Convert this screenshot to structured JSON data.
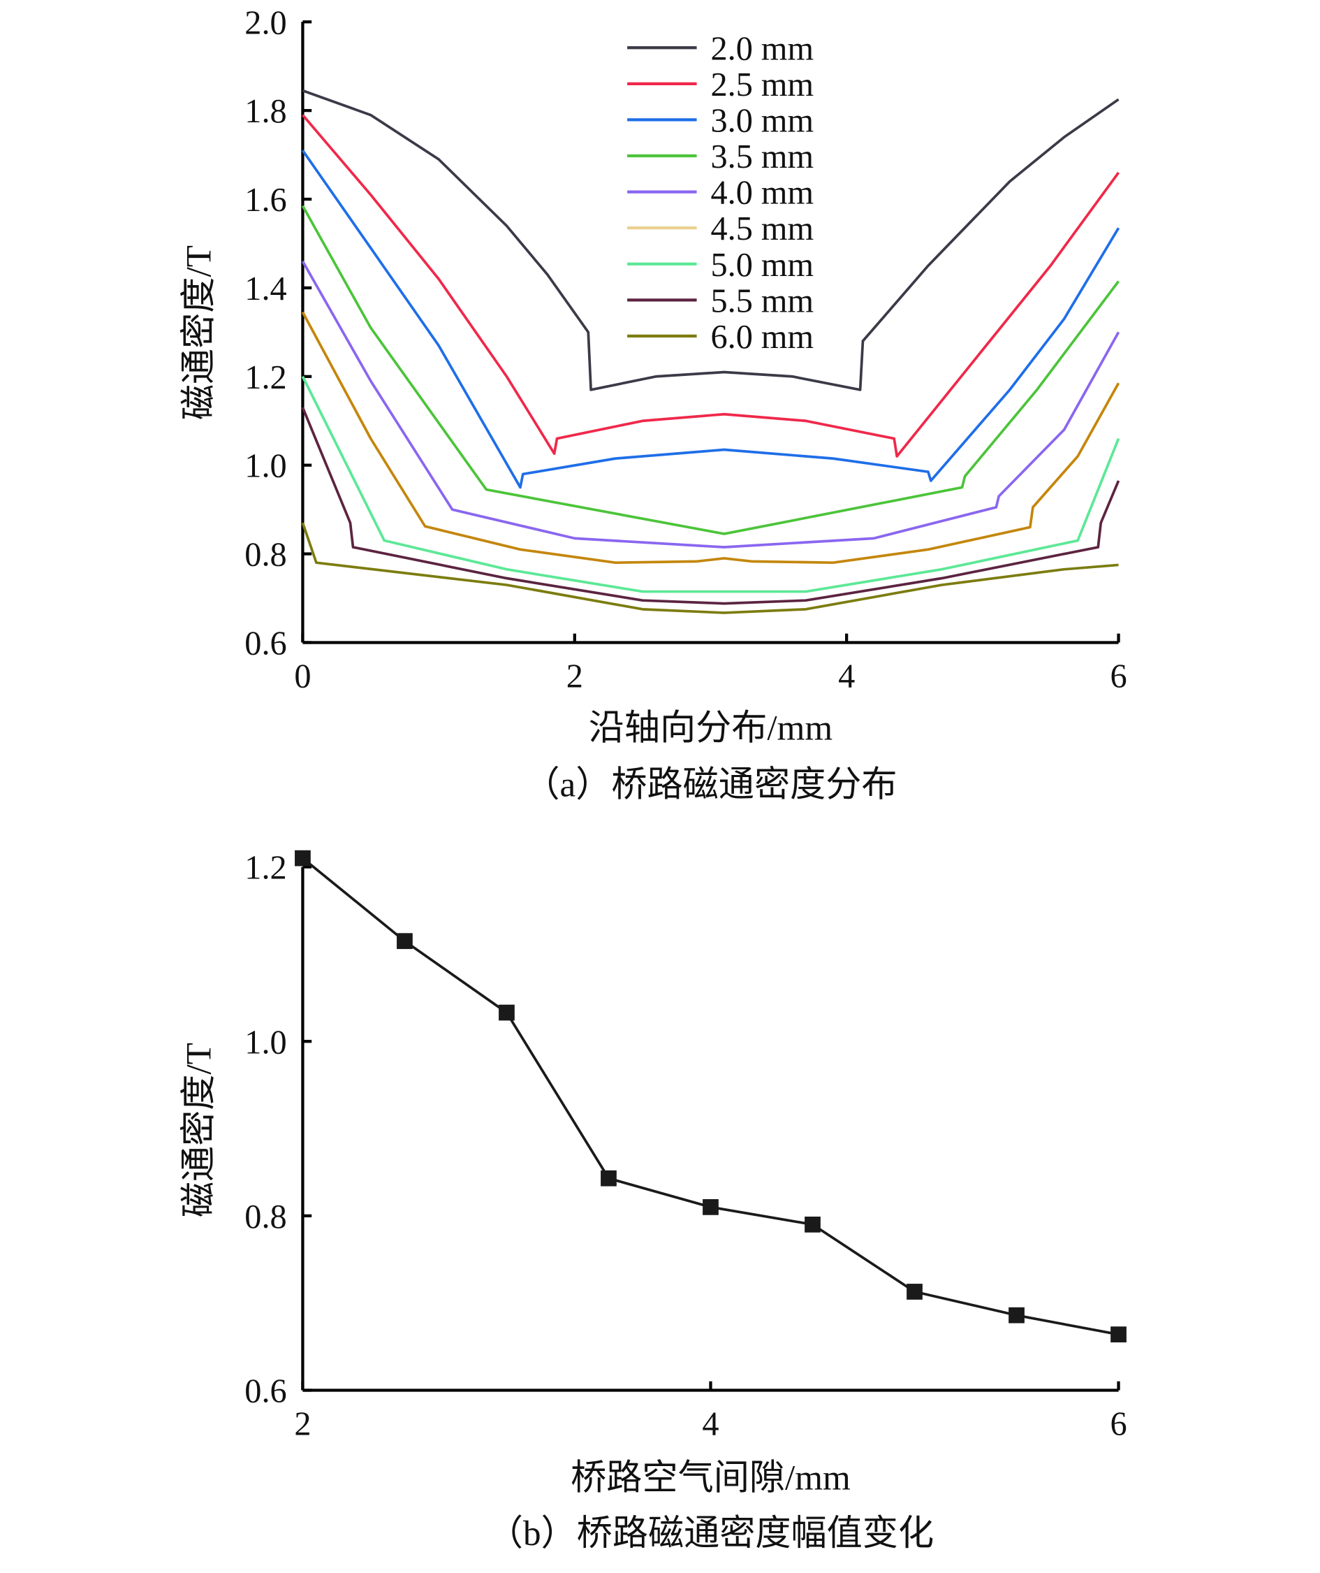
{
  "chart_data": [
    {
      "type": "line",
      "title": "",
      "caption": "（a）桥路磁通密度分布",
      "xlabel": "沿轴向分布/mm",
      "ylabel": "磁通密度/T",
      "xlim": [
        0,
        6
      ],
      "ylim": [
        0.6,
        2.0
      ],
      "xticks": [
        "0",
        "2",
        "4",
        "6"
      ],
      "yticks": [
        "0.6",
        "0.8",
        "1.0",
        "1.2",
        "1.4",
        "1.6",
        "1.8",
        "2.0"
      ],
      "grid": false,
      "legend_position": "top-center",
      "series": [
        {
          "name": "2.0 mm",
          "color": "#3a3a48",
          "points": [
            [
              0,
              1.845
            ],
            [
              0.5,
              1.79
            ],
            [
              1,
              1.69
            ],
            [
              1.5,
              1.54
            ],
            [
              1.8,
              1.43
            ],
            [
              2.1,
              1.3
            ],
            [
              2.12,
              1.17
            ],
            [
              2.6,
              1.2
            ],
            [
              3.1,
              1.21
            ],
            [
              3.6,
              1.2
            ],
            [
              4.1,
              1.17
            ],
            [
              4.12,
              1.28
            ],
            [
              4.6,
              1.45
            ],
            [
              5.2,
              1.64
            ],
            [
              5.6,
              1.74
            ],
            [
              6,
              1.825
            ]
          ]
        },
        {
          "name": "2.5 mm",
          "color": "#f0284a",
          "points": [
            [
              0,
              1.79
            ],
            [
              0.5,
              1.61
            ],
            [
              1,
              1.42
            ],
            [
              1.5,
              1.2
            ],
            [
              1.85,
              1.026
            ],
            [
              1.87,
              1.06
            ],
            [
              2.5,
              1.1
            ],
            [
              3.1,
              1.115
            ],
            [
              3.7,
              1.1
            ],
            [
              4.35,
              1.06
            ],
            [
              4.37,
              1.02
            ],
            [
              5,
              1.26
            ],
            [
              5.5,
              1.45
            ],
            [
              6,
              1.66
            ]
          ]
        },
        {
          "name": "3.0 mm",
          "color": "#1e6ee8",
          "points": [
            [
              0,
              1.71
            ],
            [
              0.5,
              1.49
            ],
            [
              1,
              1.27
            ],
            [
              1.6,
              0.95
            ],
            [
              1.62,
              0.98
            ],
            [
              2.3,
              1.015
            ],
            [
              3.1,
              1.035
            ],
            [
              3.9,
              1.015
            ],
            [
              4.6,
              0.985
            ],
            [
              4.62,
              0.965
            ],
            [
              5.2,
              1.17
            ],
            [
              5.6,
              1.33
            ],
            [
              6,
              1.535
            ]
          ]
        },
        {
          "name": "3.5 mm",
          "color": "#4cc43a",
          "points": [
            [
              0,
              1.585
            ],
            [
              0.5,
              1.31
            ],
            [
              1.35,
              0.945
            ],
            [
              3.1,
              0.845
            ],
            [
              4.85,
              0.95
            ],
            [
              4.87,
              0.975
            ],
            [
              5.4,
              1.17
            ],
            [
              6,
              1.415
            ]
          ]
        },
        {
          "name": "4.0 mm",
          "color": "#8a66f0",
          "points": [
            [
              0,
              1.46
            ],
            [
              0.5,
              1.19
            ],
            [
              1.1,
              0.9
            ],
            [
              2,
              0.835
            ],
            [
              3.1,
              0.815
            ],
            [
              4.2,
              0.835
            ],
            [
              5.1,
              0.905
            ],
            [
              5.12,
              0.93
            ],
            [
              5.6,
              1.08
            ],
            [
              6,
              1.3
            ]
          ]
        },
        {
          "name": "4.5 mm",
          "color": "#c4860c",
          "legend_color": "#ead08e",
          "points": [
            [
              0,
              1.345
            ],
            [
              0.5,
              1.06
            ],
            [
              0.9,
              0.862
            ],
            [
              1.6,
              0.81
            ],
            [
              2.3,
              0.78
            ],
            [
              2.9,
              0.783
            ],
            [
              3.1,
              0.79
            ],
            [
              3.3,
              0.783
            ],
            [
              3.9,
              0.78
            ],
            [
              4.6,
              0.81
            ],
            [
              5.35,
              0.86
            ],
            [
              5.37,
              0.905
            ],
            [
              5.7,
              1.02
            ],
            [
              6,
              1.185
            ]
          ]
        },
        {
          "name": "5.0 mm",
          "color": "#5ce896",
          "points": [
            [
              0,
              1.2
            ],
            [
              0.6,
              0.83
            ],
            [
              1.5,
              0.765
            ],
            [
              2.5,
              0.715
            ],
            [
              3.1,
              0.715
            ],
            [
              3.7,
              0.715
            ],
            [
              4.7,
              0.765
            ],
            [
              5.7,
              0.83
            ],
            [
              6,
              1.06
            ]
          ]
        },
        {
          "name": "5.5 mm",
          "color": "#5c2440",
          "points": [
            [
              0,
              1.13
            ],
            [
              0.35,
              0.87
            ],
            [
              0.37,
              0.815
            ],
            [
              1.5,
              0.745
            ],
            [
              2.5,
              0.695
            ],
            [
              3.1,
              0.688
            ],
            [
              3.7,
              0.695
            ],
            [
              4.7,
              0.745
            ],
            [
              5.85,
              0.815
            ],
            [
              5.87,
              0.87
            ],
            [
              6,
              0.965
            ]
          ]
        },
        {
          "name": "6.0 mm",
          "color": "#7c7c10",
          "points": [
            [
              0,
              0.87
            ],
            [
              0.1,
              0.78
            ],
            [
              1.5,
              0.73
            ],
            [
              2.5,
              0.675
            ],
            [
              3.1,
              0.667
            ],
            [
              3.7,
              0.675
            ],
            [
              4.7,
              0.73
            ],
            [
              5.6,
              0.765
            ],
            [
              6,
              0.775
            ]
          ]
        }
      ]
    },
    {
      "type": "line",
      "title": "",
      "caption": "（b）桥路磁通密度幅值变化",
      "xlabel": "桥路空气间隙/mm",
      "ylabel": "磁通密度/T",
      "xlim": [
        2,
        6
      ],
      "ylim": [
        0.6,
        1.2
      ],
      "xticks": [
        "2",
        "4",
        "6"
      ],
      "yticks": [
        "0.6",
        "0.8",
        "1.0",
        "1.2"
      ],
      "grid": false,
      "marker": "square",
      "color": "#1a1a1a",
      "x": [
        2.0,
        2.5,
        3.0,
        3.5,
        4.0,
        4.5,
        5.0,
        5.5,
        6.0
      ],
      "values": [
        1.21,
        1.115,
        1.033,
        0.843,
        0.81,
        0.79,
        0.713,
        0.686,
        0.664
      ]
    }
  ]
}
